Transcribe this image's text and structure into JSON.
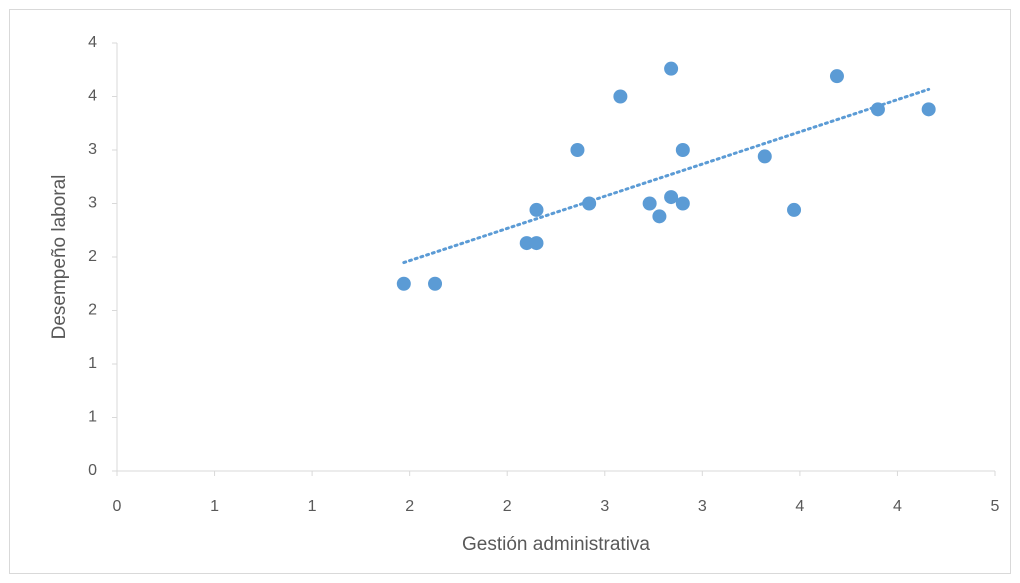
{
  "chart_data": {
    "type": "scatter",
    "x_label": "Gestión administrativa",
    "y_label": "Desempeño laboral",
    "color": "#5b9bd5",
    "trendline": true,
    "xlim": [
      0,
      4.5
    ],
    "ylim": [
      0,
      4
    ],
    "xticks": [
      0,
      {
        "value": 0.5,
        "label": "1"
      },
      1,
      {
        "value": 1.5,
        "label": "2"
      },
      2,
      {
        "value": 2.5,
        "label": "3"
      },
      3,
      {
        "value": 3.5,
        "label": "4"
      },
      4,
      {
        "value": 4.5,
        "label": "5"
      }
    ],
    "yticks": [
      0,
      {
        "value": 0.5,
        "label": "1"
      },
      1,
      {
        "value": 1.5,
        "label": "2"
      },
      2,
      {
        "value": 2.5,
        "label": "3"
      },
      3,
      {
        "value": 3.5,
        "label": "4"
      },
      4
    ],
    "x": [
      1.47,
      1.63,
      2.1,
      2.15,
      2.15,
      2.36,
      2.42,
      2.58,
      2.73,
      2.78,
      2.84,
      2.84,
      2.9,
      2.9,
      3.32,
      3.47,
      3.69,
      3.9,
      4.16
    ],
    "values": [
      1.75,
      1.75,
      2.13,
      2.13,
      2.44,
      3.0,
      2.5,
      3.5,
      2.5,
      2.38,
      3.76,
      2.56,
      3.0,
      2.5,
      2.94,
      2.44,
      3.69,
      3.38,
      3.38
    ]
  }
}
